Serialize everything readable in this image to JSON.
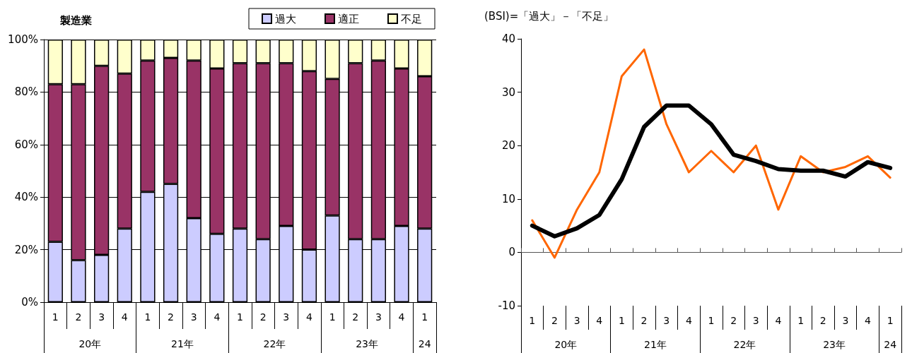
{
  "chart_data": [
    {
      "type": "bar",
      "title": "製造業",
      "categories": [
        "1",
        "2",
        "3",
        "4",
        "1",
        "2",
        "3",
        "4",
        "1",
        "2",
        "3",
        "4",
        "1",
        "2",
        "3",
        "4",
        "1"
      ],
      "annotations": [
        "20年",
        "21年",
        "22年",
        "23年",
        "24"
      ],
      "stacked": true,
      "legend": "top right",
      "grid": "y",
      "ylim": [
        0,
        100
      ],
      "yticks": [
        {
          "value": 0,
          "label": "0%"
        },
        {
          "value": 20,
          "label": "20%"
        },
        {
          "value": 40,
          "label": "40%"
        },
        {
          "value": 60,
          "label": "60%"
        },
        {
          "value": 80,
          "label": "80%"
        },
        {
          "value": 100,
          "label": "100%"
        }
      ],
      "series": [
        {
          "name": "過大",
          "color": "#ccccff",
          "values": [
            23,
            16,
            18,
            28,
            42,
            45,
            32,
            26,
            28,
            24,
            29,
            20,
            33,
            24,
            24,
            29,
            28
          ]
        },
        {
          "name": "適正",
          "color": "#993366",
          "values": [
            60,
            67,
            72,
            59,
            50,
            48,
            60,
            63,
            63,
            67,
            62,
            68,
            52,
            67,
            68,
            60,
            58
          ]
        },
        {
          "name": "不足",
          "color": "#ffffcc",
          "values": [
            17,
            17,
            10,
            13,
            8,
            7,
            8,
            11,
            9,
            9,
            9,
            12,
            15,
            9,
            8,
            11,
            14
          ]
        }
      ]
    },
    {
      "type": "line",
      "title": "(BSI)=「過大」－「不足」",
      "categories": [
        "1",
        "2",
        "3",
        "4",
        "1",
        "2",
        "3",
        "4",
        "1",
        "2",
        "3",
        "4",
        "1",
        "2",
        "3",
        "4",
        "1"
      ],
      "annotations": [
        "20年",
        "21年",
        "22年",
        "23年",
        "24"
      ],
      "legend": false,
      "marker": "none",
      "ylim": [
        -10,
        40
      ],
      "yticks": [
        -10,
        0,
        10,
        20,
        30,
        40
      ],
      "series": [
        {
          "color": "#ff6600",
          "values": [
            6,
            -1,
            8,
            15,
            33,
            38,
            24,
            15,
            19,
            15,
            20,
            8,
            18,
            15,
            16,
            18,
            14
          ]
        },
        {
          "color": "#000000",
          "values": [
            5,
            3,
            4.5,
            7,
            13.7,
            23.5,
            27.5,
            27.5,
            24,
            18.3,
            17.1,
            15.6,
            15.3,
            15.3,
            14.2,
            16.9,
            15.8
          ]
        }
      ]
    }
  ]
}
